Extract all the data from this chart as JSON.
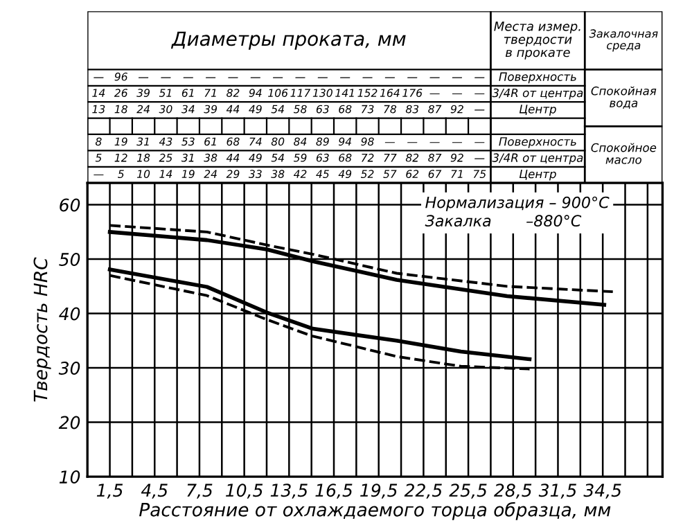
{
  "chart_data": {
    "type": "line",
    "xlabel": "Расстояние от охлаждаемого торца образца, мм",
    "ylabel": "Твердость HRC",
    "xlim": [
      0,
      38.5
    ],
    "ylim": [
      10,
      64
    ],
    "xticks": [
      {
        "value": 1.5,
        "label": "1,5"
      },
      {
        "value": 3,
        "label": null
      },
      {
        "value": 4.5,
        "label": "4,5"
      },
      {
        "value": 6,
        "label": null
      },
      {
        "value": 7.5,
        "label": "7,5"
      },
      {
        "value": 9,
        "label": null
      },
      {
        "value": 10.5,
        "label": "10,5"
      },
      {
        "value": 12,
        "label": null
      },
      {
        "value": 13.5,
        "label": "13,5"
      },
      {
        "value": 15,
        "label": null
      },
      {
        "value": 16.5,
        "label": "16,5"
      },
      {
        "value": 18,
        "label": null
      },
      {
        "value": 19.5,
        "label": "19,5"
      },
      {
        "value": 21,
        "label": null
      },
      {
        "value": 22.5,
        "label": "22,5"
      },
      {
        "value": 24,
        "label": null
      },
      {
        "value": 25.5,
        "label": "25,5"
      },
      {
        "value": 27,
        "label": null
      },
      {
        "value": 28.5,
        "label": "28,5"
      },
      {
        "value": 30,
        "label": null
      },
      {
        "value": 31.5,
        "label": "31,5"
      },
      {
        "value": 33,
        "label": null
      },
      {
        "value": 34.5,
        "label": "34,5"
      },
      {
        "value": 36,
        "label": null
      },
      {
        "value": 37.5,
        "label": null
      }
    ],
    "yticks": [
      10,
      20,
      30,
      40,
      50,
      60
    ],
    "grid": true,
    "marker": "none",
    "series": [
      {
        "color": "#000000",
        "line_style": "solid",
        "x": [
          1.5,
          8,
          12,
          15.1,
          20.7,
          28.1,
          34.6
        ],
        "values": [
          55.0,
          53.5,
          51.8,
          49.6,
          46.2,
          43.2,
          41.6
        ]
      },
      {
        "color": "#000000",
        "line_style": "dashed",
        "x": [
          1.5,
          8,
          12,
          15.1,
          20.7,
          28.1,
          35.2
        ],
        "values": [
          56.2,
          55.0,
          52.6,
          50.9,
          47.4,
          45.0,
          44.0
        ]
      },
      {
        "color": "#000000",
        "line_style": "solid",
        "x": [
          1.5,
          8,
          12,
          15.1,
          20.7,
          25,
          29.6
        ],
        "values": [
          48.1,
          44.9,
          40.2,
          37.2,
          35.0,
          33.0,
          31.6
        ]
      },
      {
        "color": "#000000",
        "line_style": "dashed",
        "x": [
          1.5,
          8,
          12,
          15,
          20.7,
          25,
          29.6
        ],
        "values": [
          47.0,
          43.3,
          38.9,
          35.9,
          32.1,
          30.3,
          29.8
        ]
      }
    ],
    "annotations": [
      "Нормализация – 900°С",
      "Закалка       –880°С",
      "Диаметры проката, мм",
      "Места измер. твердости в прокате",
      "Закалочная среда",
      "— 96 — — — — — — — — — — — — — — — —",
      "14 26 39 51 61 71 82 94 106 117 130 141 152 164 176 — — —",
      "13 18 24 30 34 39 44 49 54 58 63 68 73 78 83 87 92 —",
      "8 19 31 43 53 61 68 74 80 84 89 94 98 — — — — —",
      "5 12 18 25 31 38 44 49 54 59 63 68 72 77 82 87 92 —",
      "— 5 10 14 19 24 29 33 38 42 45 49 52 57 62 67 71 75",
      "Поверхность",
      "3/4R от центра",
      "Центр",
      "Поверхность",
      "3/4R от центра",
      "Центр",
      "Спокойная вода",
      "Спокойное масло"
    ]
  }
}
